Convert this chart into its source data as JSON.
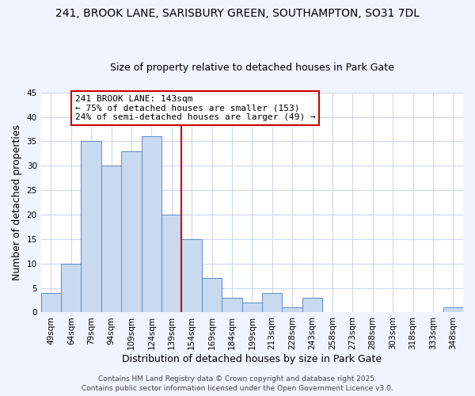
{
  "title_line1": "241, BROOK LANE, SARISBURY GREEN, SOUTHAMPTON, SO31 7DL",
  "title_line2": "Size of property relative to detached houses in Park Gate",
  "bar_labels": [
    "49sqm",
    "64sqm",
    "79sqm",
    "94sqm",
    "109sqm",
    "124sqm",
    "139sqm",
    "154sqm",
    "169sqm",
    "184sqm",
    "199sqm",
    "213sqm",
    "228sqm",
    "243sqm",
    "258sqm",
    "273sqm",
    "288sqm",
    "303sqm",
    "318sqm",
    "333sqm",
    "348sqm"
  ],
  "bar_values": [
    4,
    10,
    35,
    30,
    33,
    36,
    20,
    15,
    7,
    3,
    2,
    4,
    1,
    3,
    0,
    0,
    0,
    0,
    0,
    0,
    1
  ],
  "bar_color": "#c9d9f0",
  "bar_edge_color": "#5b8bc9",
  "ylabel": "Number of detached properties",
  "xlabel": "Distribution of detached houses by size in Park Gate",
  "ylim": [
    0,
    45
  ],
  "yticks": [
    0,
    5,
    10,
    15,
    20,
    25,
    30,
    35,
    40,
    45
  ],
  "vline_x_index": 6,
  "vline_color": "#cc0000",
  "annotation_title": "241 BROOK LANE: 143sqm",
  "annotation_line1": "← 75% of detached houses are smaller (153)",
  "annotation_line2": "24% of semi-detached houses are larger (49) →",
  "annotation_box_color": "#ffffff",
  "annotation_box_edge_color": "#cc0000",
  "footer_line1": "Contains HM Land Registry data © Crown copyright and database right 2025.",
  "footer_line2": "Contains public sector information licensed under the Open Government Licence v3.0.",
  "plot_bg_color": "#ffffff",
  "fig_bg_color": "#f0f4ff",
  "grid_color": "#d0d8f0",
  "title_fontsize": 10,
  "subtitle_fontsize": 9,
  "axis_label_fontsize": 9,
  "tick_fontsize": 7.5,
  "annotation_fontsize": 8,
  "footer_fontsize": 6.5
}
